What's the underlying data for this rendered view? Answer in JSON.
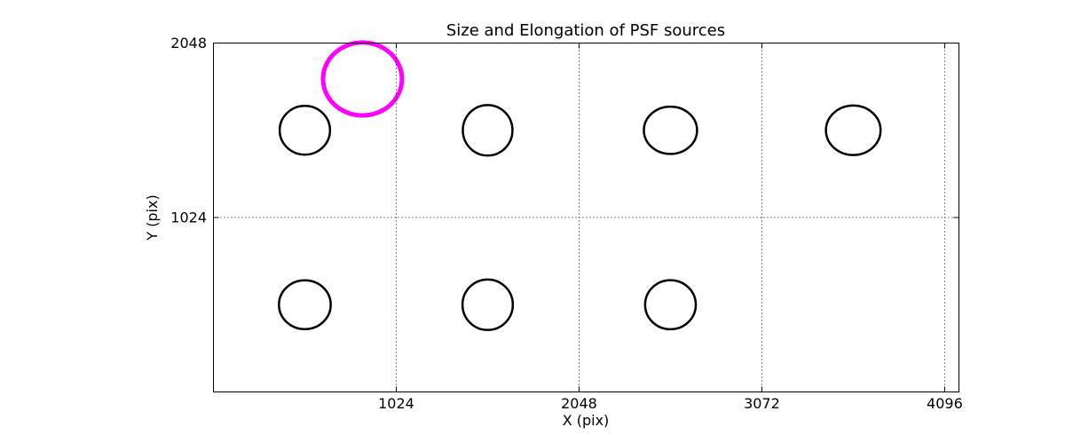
{
  "figure": {
    "background_color": "#ffffff",
    "frame_color": "#000000",
    "grid_style": "dotted",
    "grid_color": "#000000"
  },
  "chart_data": {
    "type": "scatter",
    "title": "Size and Elongation of PSF sources",
    "xlabel": "X (pix)",
    "ylabel": "Y (pix)",
    "xlim": [
      0,
      4176
    ],
    "ylim": [
      0,
      2048
    ],
    "xticks": [
      1024,
      2048,
      3072,
      4096
    ],
    "xtick_labels": [
      "1024",
      "2048",
      "3072",
      "4096"
    ],
    "yticks": [
      1024,
      2048
    ],
    "ytick_labels": [
      "1024",
      "2048"
    ],
    "grid": "on",
    "legend": "none",
    "marker_shape": "ellipse",
    "colors": {
      "normal_source": "#000000",
      "highlight_source": "#ff00ff"
    },
    "sources": [
      {
        "x": 512,
        "y": 1536,
        "rx": 141,
        "ry": 143,
        "color": "#000000",
        "lw": 2.5
      },
      {
        "x": 1536,
        "y": 1536,
        "rx": 139,
        "ry": 148,
        "color": "#000000",
        "lw": 2.5
      },
      {
        "x": 2560,
        "y": 1536,
        "rx": 149,
        "ry": 139,
        "color": "#000000",
        "lw": 2.5
      },
      {
        "x": 3584,
        "y": 1536,
        "rx": 153,
        "ry": 145,
        "color": "#000000",
        "lw": 2.5
      },
      {
        "x": 512,
        "y": 512,
        "rx": 145,
        "ry": 143,
        "color": "#000000",
        "lw": 2.5
      },
      {
        "x": 1536,
        "y": 512,
        "rx": 141,
        "ry": 148,
        "color": "#000000",
        "lw": 2.5
      },
      {
        "x": 2560,
        "y": 512,
        "rx": 142,
        "ry": 144,
        "color": "#000000",
        "lw": 2.5
      },
      {
        "x": 835,
        "y": 1837,
        "rx": 221,
        "ry": 214,
        "color": "#ff00ff",
        "lw": 5
      }
    ]
  }
}
